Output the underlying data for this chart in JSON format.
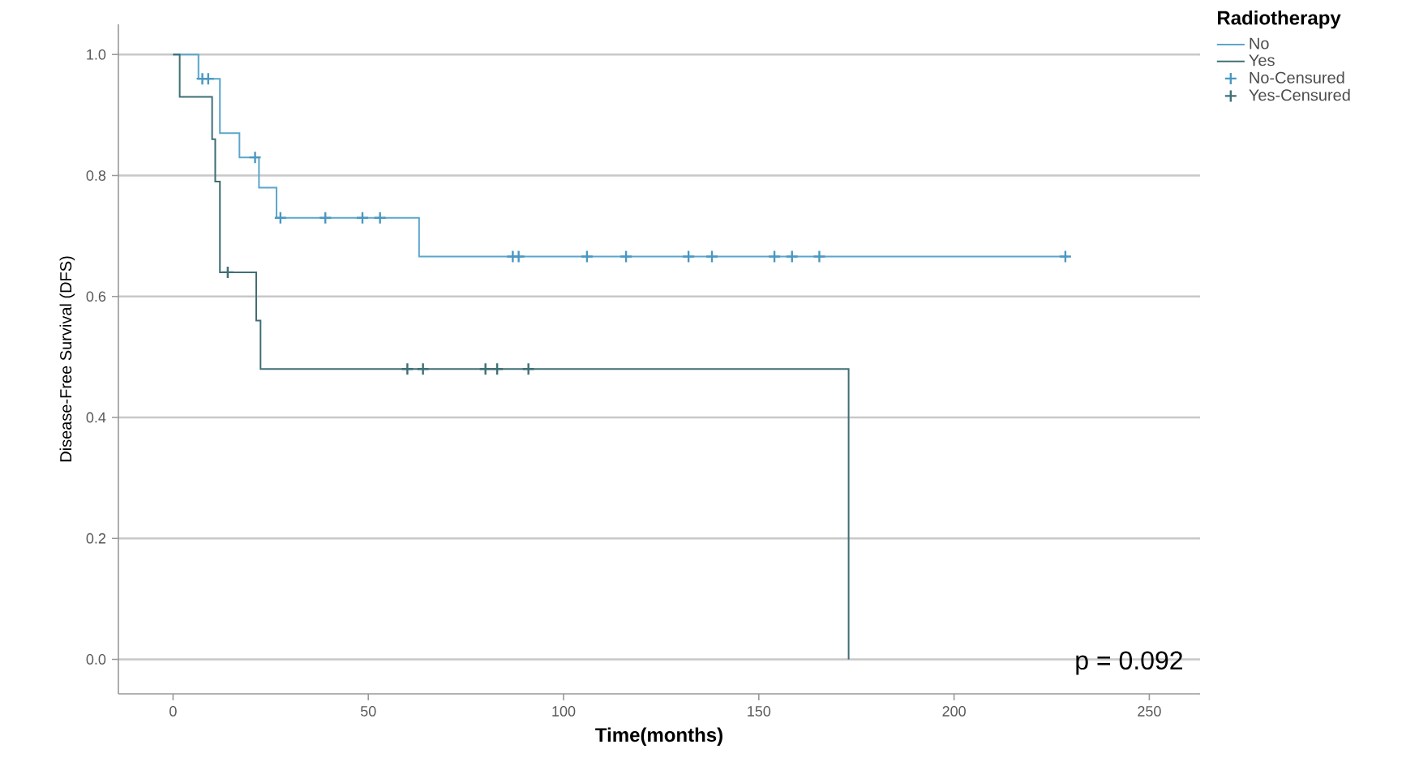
{
  "chart_data": {
    "type": "step",
    "xlabel": "Time(months)",
    "ylabel": "Disease-Free Survival (DFS)",
    "legend_title": "Radiotherapy",
    "annotations": [
      "p = 0.092"
    ],
    "xlim": [
      -14,
      263
    ],
    "ylim": [
      -0.057,
      1.05
    ],
    "xticks": [
      0,
      50,
      100,
      150,
      200,
      250
    ],
    "yticks": [
      {
        "value": 0,
        "label": "0.0"
      },
      {
        "value": 0.2,
        "label": "0.2"
      },
      {
        "value": 0.4,
        "label": "0.4"
      },
      {
        "value": 0.6,
        "label": "0.6"
      },
      {
        "value": 0.8,
        "label": "0.8"
      },
      {
        "value": 1.0,
        "label": "1.0"
      }
    ],
    "grid": "y",
    "legend": "top right",
    "series": [
      {
        "name": "No",
        "color": "#5ba6cc",
        "x": [
          0,
          6.5,
          12,
          17,
          22,
          26.5,
          63,
          229
        ],
        "values": [
          1.0,
          0.96,
          0.87,
          0.83,
          0.78,
          0.73,
          0.666,
          0.666
        ]
      },
      {
        "name": "Yes",
        "color": "#3f6f75",
        "x": [
          0,
          1.7,
          10,
          10.8,
          12,
          21.3,
          22.4,
          173,
          173
        ],
        "values": [
          1.0,
          0.93,
          0.86,
          0.79,
          0.64,
          0.56,
          0.48,
          0.0,
          0.0
        ]
      },
      {
        "name": "No-Censured",
        "type": "scatter",
        "marker": "cross",
        "color": "#4a97c2",
        "x": [
          7.5,
          9,
          21,
          27.5,
          39,
          48.5,
          53,
          87,
          88.5,
          106,
          116,
          132,
          138,
          154,
          158.5,
          165.5,
          228.5
        ],
        "values": [
          0.96,
          0.96,
          0.83,
          0.73,
          0.73,
          0.73,
          0.73,
          0.666,
          0.666,
          0.666,
          0.666,
          0.666,
          0.666,
          0.666,
          0.666,
          0.666,
          0.666
        ]
      },
      {
        "name": "Yes-Censured",
        "type": "scatter",
        "marker": "cross",
        "color": "#3f6f75",
        "x": [
          14,
          60,
          64,
          80,
          83,
          91
        ],
        "values": [
          0.64,
          0.48,
          0.48,
          0.48,
          0.48,
          0.48
        ]
      }
    ]
  }
}
